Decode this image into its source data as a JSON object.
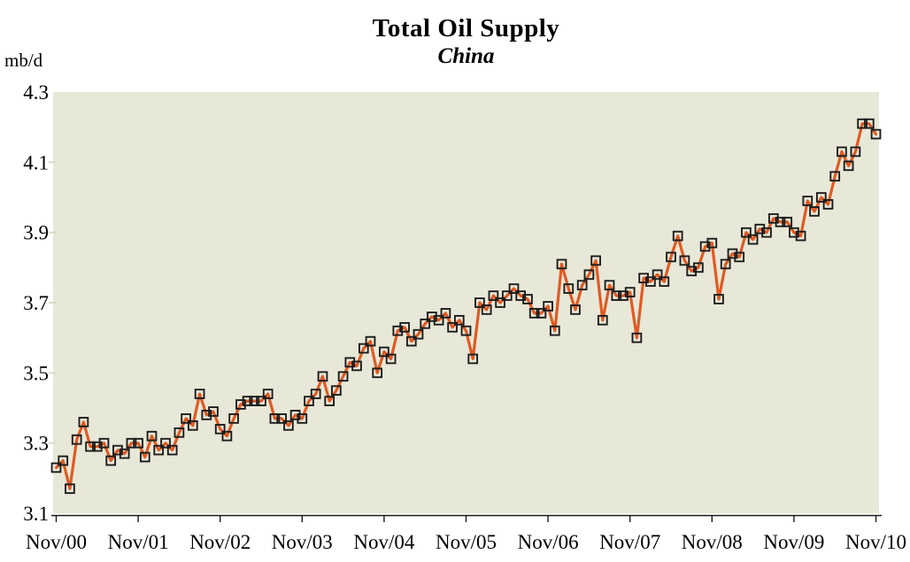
{
  "page": {
    "background": "#ffffff"
  },
  "header": {
    "title": "Total Oil Supply",
    "subtitle": "China"
  },
  "y_axis": {
    "unit_label": "mb/d",
    "tick_labels": [
      "4.3",
      "4.1",
      "3.9",
      "3.7",
      "3.5",
      "3.3",
      "3.1"
    ],
    "min": 3.1,
    "max": 4.3
  },
  "x_axis": {
    "tick_labels": [
      "Nov/00",
      "Nov/01",
      "Nov/02",
      "Nov/03",
      "Nov/04",
      "Nov/05",
      "Nov/06",
      "Nov/07",
      "Nov/08",
      "Nov/09",
      "Nov/10"
    ],
    "tick_every_months": 12
  },
  "colors": {
    "plot_background": "#e8e8d8",
    "line": "#e05a23",
    "marker_border": "#1c1c1c",
    "axis": "#1a1a1a",
    "y_tick_dash": "#d9d9c6"
  },
  "chart_data": {
    "type": "line",
    "title": "Total Oil Supply",
    "subtitle": "China",
    "ylabel": "mb/d",
    "xlabel": "",
    "ylim": [
      3.1,
      4.3
    ],
    "grid": "off",
    "legend_position": "none",
    "marker": "open-square",
    "x": [
      "Nov/00",
      "Dec/00",
      "Jan/01",
      "Feb/01",
      "Mar/01",
      "Apr/01",
      "May/01",
      "Jun/01",
      "Jul/01",
      "Aug/01",
      "Sep/01",
      "Oct/01",
      "Nov/01",
      "Dec/01",
      "Jan/02",
      "Feb/02",
      "Mar/02",
      "Apr/02",
      "May/02",
      "Jun/02",
      "Jul/02",
      "Aug/02",
      "Sep/02",
      "Oct/02",
      "Nov/02",
      "Dec/02",
      "Jan/03",
      "Feb/03",
      "Mar/03",
      "Apr/03",
      "May/03",
      "Jun/03",
      "Jul/03",
      "Aug/03",
      "Sep/03",
      "Oct/03",
      "Nov/03",
      "Dec/03",
      "Jan/04",
      "Feb/04",
      "Mar/04",
      "Apr/04",
      "May/04",
      "Jun/04",
      "Jul/04",
      "Aug/04",
      "Sep/04",
      "Oct/04",
      "Nov/04",
      "Dec/04",
      "Jan/05",
      "Feb/05",
      "Mar/05",
      "Apr/05",
      "May/05",
      "Jun/05",
      "Jul/05",
      "Aug/05",
      "Sep/05",
      "Oct/05",
      "Nov/05",
      "Dec/05",
      "Jan/06",
      "Feb/06",
      "Mar/06",
      "Apr/06",
      "May/06",
      "Jun/06",
      "Jul/06",
      "Aug/06",
      "Sep/06",
      "Oct/06",
      "Nov/06",
      "Dec/06",
      "Jan/07",
      "Feb/07",
      "Mar/07",
      "Apr/07",
      "May/07",
      "Jun/07",
      "Jul/07",
      "Aug/07",
      "Sep/07",
      "Oct/07",
      "Nov/07",
      "Dec/07",
      "Jan/08",
      "Feb/08",
      "Mar/08",
      "Apr/08",
      "May/08",
      "Jun/08",
      "Jul/08",
      "Aug/08",
      "Sep/08",
      "Oct/08",
      "Nov/08",
      "Dec/08",
      "Jan/09",
      "Feb/09",
      "Mar/09",
      "Apr/09",
      "May/09",
      "Jun/09",
      "Jul/09",
      "Aug/09",
      "Sep/09",
      "Oct/09",
      "Nov/09",
      "Dec/09",
      "Jan/10",
      "Feb/10",
      "Mar/10",
      "Apr/10",
      "May/10",
      "Jun/10",
      "Jul/10",
      "Aug/10",
      "Sep/10",
      "Oct/10",
      "Nov/10"
    ],
    "values": [
      3.23,
      3.25,
      3.17,
      3.31,
      3.36,
      3.29,
      3.29,
      3.3,
      3.25,
      3.28,
      3.27,
      3.3,
      3.3,
      3.26,
      3.32,
      3.28,
      3.3,
      3.28,
      3.33,
      3.37,
      3.35,
      3.44,
      3.38,
      3.39,
      3.34,
      3.32,
      3.37,
      3.41,
      3.42,
      3.42,
      3.42,
      3.44,
      3.37,
      3.37,
      3.35,
      3.38,
      3.37,
      3.42,
      3.44,
      3.49,
      3.42,
      3.45,
      3.49,
      3.53,
      3.52,
      3.57,
      3.59,
      3.5,
      3.56,
      3.54,
      3.62,
      3.63,
      3.59,
      3.61,
      3.64,
      3.66,
      3.65,
      3.67,
      3.63,
      3.65,
      3.62,
      3.54,
      3.7,
      3.68,
      3.72,
      3.7,
      3.72,
      3.74,
      3.72,
      3.71,
      3.67,
      3.67,
      3.69,
      3.62,
      3.81,
      3.74,
      3.68,
      3.75,
      3.78,
      3.82,
      3.65,
      3.75,
      3.72,
      3.72,
      3.73,
      3.6,
      3.77,
      3.76,
      3.78,
      3.76,
      3.83,
      3.89,
      3.82,
      3.79,
      3.8,
      3.86,
      3.87,
      3.71,
      3.81,
      3.84,
      3.83,
      3.9,
      3.88,
      3.91,
      3.9,
      3.94,
      3.93,
      3.93,
      3.9,
      3.89,
      3.99,
      3.96,
      4.0,
      3.98,
      4.06,
      4.13,
      4.09,
      4.13,
      4.21,
      4.21,
      4.18
    ]
  }
}
